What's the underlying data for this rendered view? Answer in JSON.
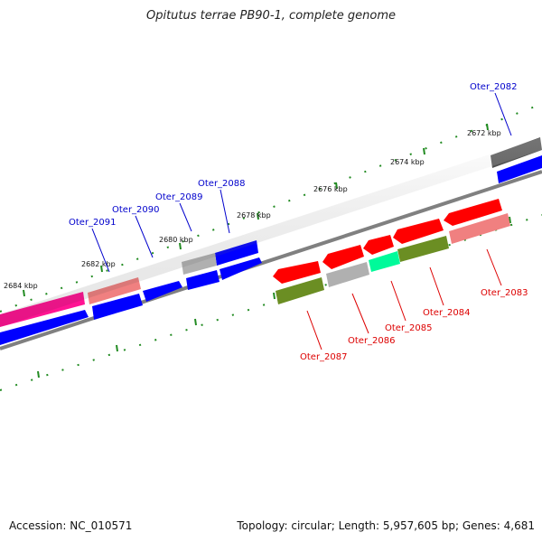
{
  "title": "Opitutus terrae PB90-1, complete genome",
  "accession": "Accession: NC_010571",
  "summary": "Topology: circular; Length: 5,957,605 bp; Genes: 4,681",
  "ticks": [
    "2672 kbp",
    "2674 kbp",
    "2676 kbp",
    "2678 kbp",
    "2680 kbp",
    "2682 kbp",
    "2684 kbp"
  ],
  "colors": {
    "backbone": "#808080",
    "tick": "#228b22",
    "forward_label": "#0000cc",
    "reverse_label": "#dd0000",
    "blue": "#0000ff",
    "red": "#ff0000",
    "pink": "#f08080",
    "magenta": "#ff1493",
    "grey": "#b0b0b0",
    "dark_grey": "#505050",
    "olive": "#6b8e23",
    "green": "#00fa9a"
  },
  "labels_forward": [
    "Oter_2082",
    "Oter_2088",
    "Oter_2089",
    "Oter_2090",
    "Oter_2091"
  ],
  "labels_reverse": [
    "Oter_2083",
    "Oter_2084",
    "Oter_2085",
    "Oter_2086",
    "Oter_2087"
  ]
}
